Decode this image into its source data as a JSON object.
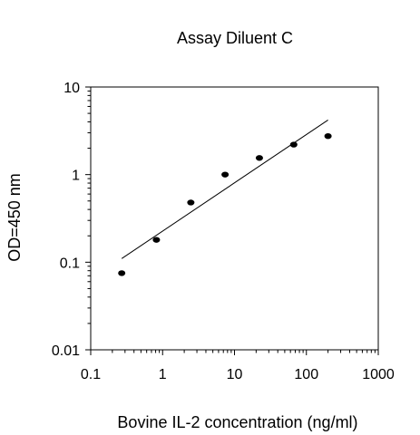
{
  "chart_data": {
    "type": "scatter",
    "title": "Assay Diluent C",
    "xlabel": "Bovine IL-2 concentration (ng/ml)",
    "ylabel": "OD=450 nm",
    "x_scale": "log",
    "y_scale": "log",
    "xlim": [
      0.1,
      1000
    ],
    "ylim": [
      0.01,
      10
    ],
    "x_ticks": [
      0.1,
      1,
      10,
      100,
      1000
    ],
    "x_tick_labels": [
      "0.1",
      "1",
      "10",
      "100",
      "1000"
    ],
    "y_ticks": [
      0.01,
      0.1,
      1,
      10
    ],
    "y_tick_labels": [
      "0.01",
      "0.1",
      "1",
      "10"
    ],
    "grid": false,
    "series": [
      {
        "points": [
          {
            "x": 0.27,
            "y": 0.075
          },
          {
            "x": 0.82,
            "y": 0.18
          },
          {
            "x": 2.47,
            "y": 0.48
          },
          {
            "x": 7.4,
            "y": 1.0
          },
          {
            "x": 22.2,
            "y": 1.55
          },
          {
            "x": 66.7,
            "y": 2.2
          },
          {
            "x": 200,
            "y": 2.75
          }
        ],
        "color": "#000000"
      }
    ],
    "fit_line": {
      "x": [
        0.27,
        200
      ],
      "y": [
        0.11,
        4.2
      ],
      "color": "#000000"
    }
  }
}
